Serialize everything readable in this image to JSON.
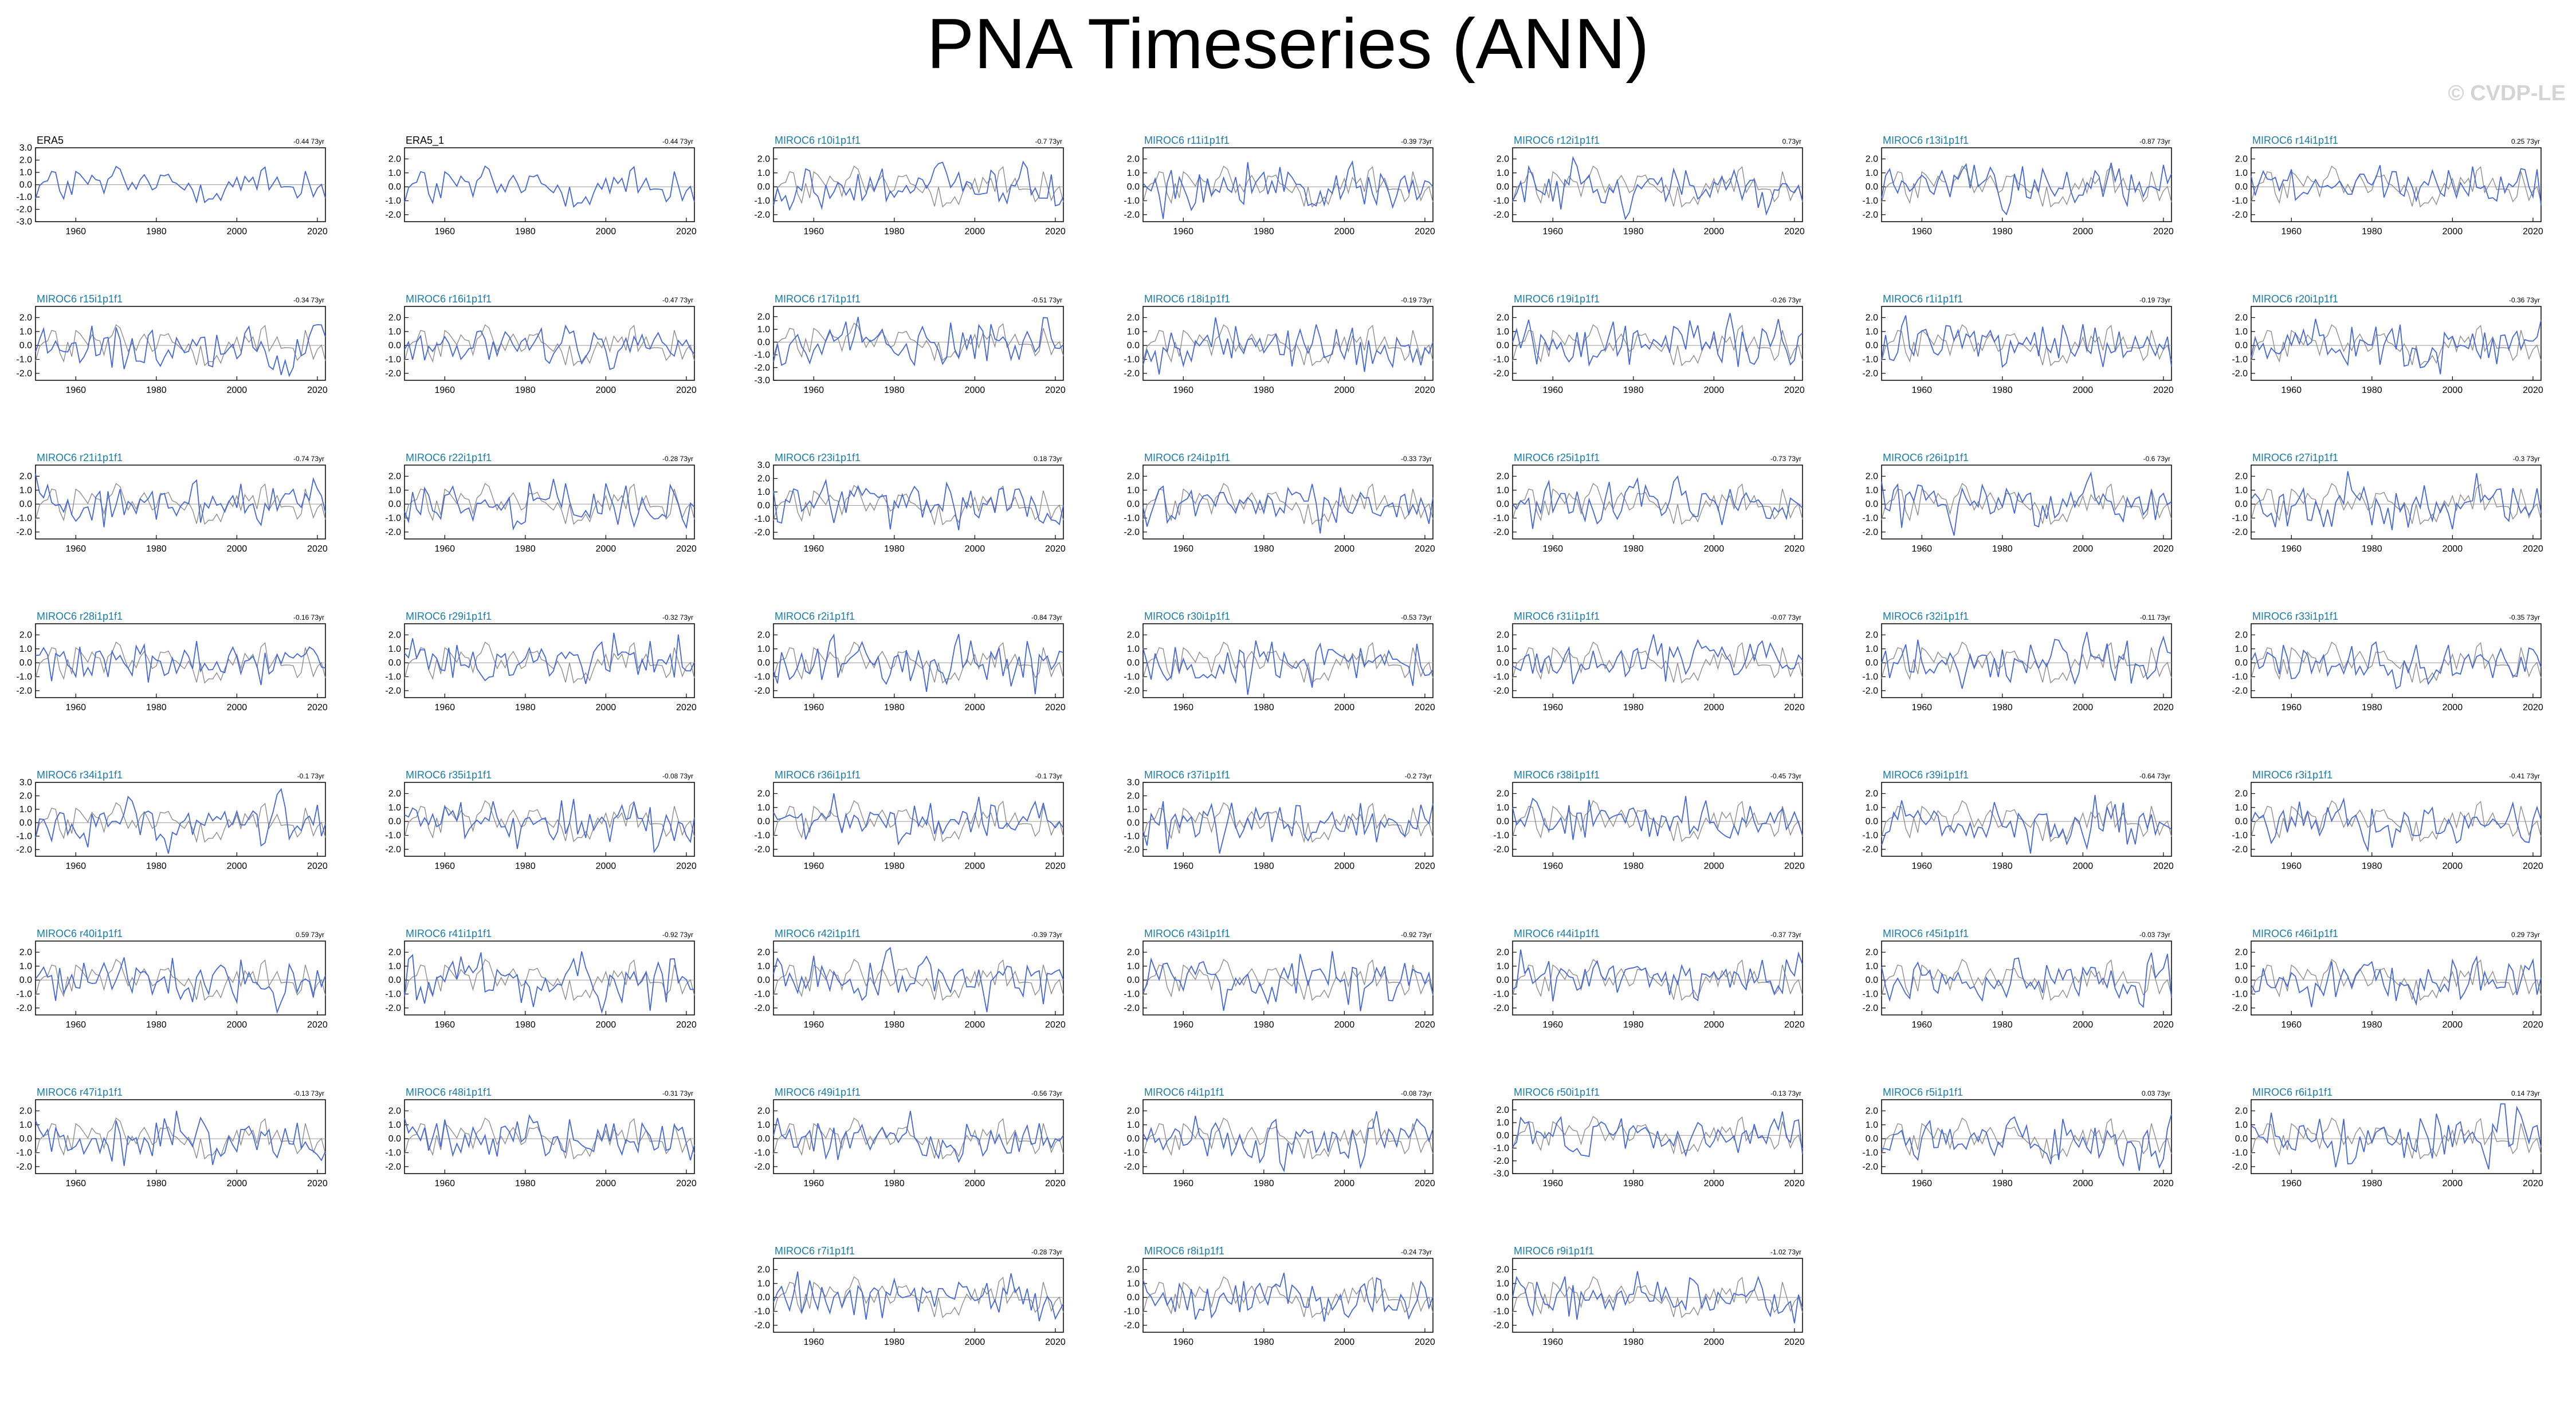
{
  "title": "PNA Timeseries (ANN)",
  "watermark": "© CVDP-LE",
  "colors": {
    "observed": "#2b2b2b",
    "model": "#4466d6",
    "reference": "#8c8c8c",
    "label_obs": "#000000",
    "label_model": "#1a7aa8"
  },
  "chart_data": {
    "type": "line",
    "x_range": [
      1950,
      2022
    ],
    "x_ticks": [
      1960,
      1980,
      2000,
      2020
    ],
    "panels": [
      {
        "label": "ERA5",
        "trend": "-0.44 73yr",
        "y_ticks": [
          "3.0",
          "2.0",
          "1.0",
          "0.0",
          "-1.0",
          "-2.0",
          "-3.0"
        ],
        "ylim": [
          -3,
          3
        ]
      },
      {
        "label": "ERA5_1",
        "trend": "-0.44 73yr",
        "y_ticks": [
          "2.0",
          "1.0",
          "0.0",
          "-1.0",
          "-2.0"
        ],
        "ylim": [
          -2.5,
          2.8
        ]
      },
      {
        "label": "MIROC6 r10i1p1f1",
        "trend": "-0.7 73yr",
        "y_ticks": [
          "2.0",
          "1.0",
          "0.0",
          "-1.0",
          "-2.0"
        ],
        "ylim": [
          -2.5,
          2.8
        ]
      },
      {
        "label": "MIROC6 r11i1p1f1",
        "trend": "-0.39 73yr",
        "y_ticks": [
          "2.0",
          "1.0",
          "0.0",
          "-1.0",
          "-2.0"
        ],
        "ylim": [
          -2.5,
          2.8
        ]
      },
      {
        "label": "MIROC6 r12i1p1f1",
        "trend": "0.73yr",
        "y_ticks": [
          "2.0",
          "1.0",
          "0.0",
          "-1.0",
          "-2.0"
        ],
        "ylim": [
          -2.5,
          2.8
        ]
      },
      {
        "label": "MIROC6 r13i1p1f1",
        "trend": "-0.87 73yr",
        "y_ticks": [
          "2.0",
          "1.0",
          "0.0",
          "-1.0",
          "-2.0"
        ],
        "ylim": [
          -2.5,
          2.8
        ]
      },
      {
        "label": "MIROC6 r14i1p1f1",
        "trend": "0.25 73yr",
        "y_ticks": [
          "2.0",
          "1.0",
          "0.0",
          "-1.0",
          "-2.0"
        ],
        "ylim": [
          -2.5,
          2.8
        ]
      },
      {
        "label": "MIROC6 r15i1p1f1",
        "trend": "-0.34 73yr",
        "y_ticks": [
          "2.0",
          "1.0",
          "0.0",
          "-1.0",
          "-2.0"
        ],
        "ylim": [
          -2.5,
          2.8
        ]
      },
      {
        "label": "MIROC6 r16i1p1f1",
        "trend": "-0.47 73yr",
        "y_ticks": [
          "2.0",
          "1.0",
          "0.0",
          "-1.0",
          "-2.0"
        ],
        "ylim": [
          -2.5,
          2.8
        ]
      },
      {
        "label": "MIROC6 r17i1p1f1",
        "trend": "-0.51 73yr",
        "y_ticks": [
          "2.0",
          "1.0",
          "0.0",
          "-1.0",
          "-2.0",
          "-3.0"
        ],
        "ylim": [
          -3,
          2.8
        ]
      },
      {
        "label": "MIROC6 r18i1p1f1",
        "trend": "-0.19 73yr",
        "y_ticks": [
          "2.0",
          "1.0",
          "0.0",
          "-1.0",
          "-2.0"
        ],
        "ylim": [
          -2.5,
          2.8
        ]
      },
      {
        "label": "MIROC6 r19i1p1f1",
        "trend": "-0.26 73yr",
        "y_ticks": [
          "2.0",
          "1.0",
          "0.0",
          "-1.0",
          "-2.0"
        ],
        "ylim": [
          -2.5,
          2.8
        ]
      },
      {
        "label": "MIROC6 r1i1p1f1",
        "trend": "-0.19 73yr",
        "y_ticks": [
          "2.0",
          "1.0",
          "0.0",
          "-1.0",
          "-2.0"
        ],
        "ylim": [
          -2.5,
          2.8
        ]
      },
      {
        "label": "MIROC6 r20i1p1f1",
        "trend": "-0.36 73yr",
        "y_ticks": [
          "2.0",
          "1.0",
          "0.0",
          "-1.0",
          "-2.0"
        ],
        "ylim": [
          -2.5,
          2.8
        ]
      },
      {
        "label": "MIROC6 r21i1p1f1",
        "trend": "-0.74 73yr",
        "y_ticks": [
          "2.0",
          "1.0",
          "0.0",
          "-1.0",
          "-2.0"
        ],
        "ylim": [
          -2.5,
          2.8
        ]
      },
      {
        "label": "MIROC6 r22i1p1f1",
        "trend": "-0.28 73yr",
        "y_ticks": [
          "2.0",
          "1.0",
          "0.0",
          "-1.0",
          "-2.0"
        ],
        "ylim": [
          -2.5,
          2.8
        ]
      },
      {
        "label": "MIROC6 r23i1p1f1",
        "trend": "0.18 73yr",
        "y_ticks": [
          "3.0",
          "2.0",
          "1.0",
          "0.0",
          "-1.0",
          "-2.0"
        ],
        "ylim": [
          -2.5,
          3
        ]
      },
      {
        "label": "MIROC6 r24i1p1f1",
        "trend": "-0.33 73yr",
        "y_ticks": [
          "2.0",
          "1.0",
          "0.0",
          "-1.0",
          "-2.0"
        ],
        "ylim": [
          -2.5,
          2.8
        ]
      },
      {
        "label": "MIROC6 r25i1p1f1",
        "trend": "-0.73 73yr",
        "y_ticks": [
          "2.0",
          "1.0",
          "0.0",
          "-1.0",
          "-2.0"
        ],
        "ylim": [
          -2.5,
          2.8
        ]
      },
      {
        "label": "MIROC6 r26i1p1f1",
        "trend": "-0.6 73yr",
        "y_ticks": [
          "2.0",
          "1.0",
          "0.0",
          "-1.0",
          "-2.0"
        ],
        "ylim": [
          -2.5,
          2.8
        ]
      },
      {
        "label": "MIROC6 r27i1p1f1",
        "trend": "-0.3 73yr",
        "y_ticks": [
          "2.0",
          "1.0",
          "0.0",
          "-1.0",
          "-2.0"
        ],
        "ylim": [
          -2.5,
          2.8
        ]
      },
      {
        "label": "MIROC6 r28i1p1f1",
        "trend": "-0.16 73yr",
        "y_ticks": [
          "2.0",
          "1.0",
          "0.0",
          "-1.0",
          "-2.0"
        ],
        "ylim": [
          -2.5,
          2.8
        ]
      },
      {
        "label": "MIROC6 r29i1p1f1",
        "trend": "-0.32 73yr",
        "y_ticks": [
          "2.0",
          "1.0",
          "0.0",
          "-1.0",
          "-2.0"
        ],
        "ylim": [
          -2.5,
          2.8
        ]
      },
      {
        "label": "MIROC6 r2i1p1f1",
        "trend": "-0.84 73yr",
        "y_ticks": [
          "2.0",
          "1.0",
          "0.0",
          "-1.0",
          "-2.0"
        ],
        "ylim": [
          -2.5,
          2.8
        ]
      },
      {
        "label": "MIROC6 r30i1p1f1",
        "trend": "-0.53 73yr",
        "y_ticks": [
          "2.0",
          "1.0",
          "0.0",
          "-1.0",
          "-2.0"
        ],
        "ylim": [
          -2.5,
          2.8
        ]
      },
      {
        "label": "MIROC6 r31i1p1f1",
        "trend": "-0.07 73yr",
        "y_ticks": [
          "2.0",
          "1.0",
          "0.0",
          "-1.0",
          "-2.0"
        ],
        "ylim": [
          -2.5,
          2.8
        ]
      },
      {
        "label": "MIROC6 r32i1p1f1",
        "trend": "-0.11 73yr",
        "y_ticks": [
          "2.0",
          "1.0",
          "0.0",
          "-1.0",
          "-2.0"
        ],
        "ylim": [
          -2.5,
          2.8
        ]
      },
      {
        "label": "MIROC6 r33i1p1f1",
        "trend": "-0.35 73yr",
        "y_ticks": [
          "2.0",
          "1.0",
          "0.0",
          "-1.0",
          "-2.0"
        ],
        "ylim": [
          -2.5,
          2.8
        ]
      },
      {
        "label": "MIROC6 r34i1p1f1",
        "trend": "-0.1 73yr",
        "y_ticks": [
          "3.0",
          "2.0",
          "1.0",
          "0.0",
          "-1.0",
          "-2.0"
        ],
        "ylim": [
          -2.5,
          3
        ]
      },
      {
        "label": "MIROC6 r35i1p1f1",
        "trend": "-0.08 73yr",
        "y_ticks": [
          "2.0",
          "1.0",
          "0.0",
          "-1.0",
          "-2.0"
        ],
        "ylim": [
          -2.5,
          2.8
        ]
      },
      {
        "label": "MIROC6 r36i1p1f1",
        "trend": "-0.1 73yr",
        "y_ticks": [
          "2.0",
          "1.0",
          "0.0",
          "-1.0",
          "-2.0"
        ],
        "ylim": [
          -2.5,
          2.8
        ]
      },
      {
        "label": "MIROC6 r37i1p1f1",
        "trend": "-0.2 73yr",
        "y_ticks": [
          "3.0",
          "2.0",
          "1.0",
          "0.0",
          "-1.0",
          "-2.0"
        ],
        "ylim": [
          -2.5,
          3
        ]
      },
      {
        "label": "MIROC6 r38i1p1f1",
        "trend": "-0.45 73yr",
        "y_ticks": [
          "2.0",
          "1.0",
          "0.0",
          "-1.0",
          "-2.0"
        ],
        "ylim": [
          -2.5,
          2.8
        ]
      },
      {
        "label": "MIROC6 r39i1p1f1",
        "trend": "-0.64 73yr",
        "y_ticks": [
          "2.0",
          "1.0",
          "0.0",
          "-1.0",
          "-2.0"
        ],
        "ylim": [
          -2.5,
          2.8
        ]
      },
      {
        "label": "MIROC6 r3i1p1f1",
        "trend": "-0.41 73yr",
        "y_ticks": [
          "2.0",
          "1.0",
          "0.0",
          "-1.0",
          "-2.0"
        ],
        "ylim": [
          -2.5,
          2.8
        ]
      },
      {
        "label": "MIROC6 r40i1p1f1",
        "trend": "0.59 73yr",
        "y_ticks": [
          "2.0",
          "1.0",
          "0.0",
          "-1.0",
          "-2.0"
        ],
        "ylim": [
          -2.5,
          2.8
        ]
      },
      {
        "label": "MIROC6 r41i1p1f1",
        "trend": "-0.92 73yr",
        "y_ticks": [
          "2.0",
          "1.0",
          "0.0",
          "-1.0",
          "-2.0"
        ],
        "ylim": [
          -2.5,
          2.8
        ]
      },
      {
        "label": "MIROC6 r42i1p1f1",
        "trend": "-0.39 73yr",
        "y_ticks": [
          "2.0",
          "1.0",
          "0.0",
          "-1.0",
          "-2.0"
        ],
        "ylim": [
          -2.5,
          2.8
        ]
      },
      {
        "label": "MIROC6 r43i1p1f1",
        "trend": "-0.92 73yr",
        "y_ticks": [
          "2.0",
          "1.0",
          "0.0",
          "-1.0",
          "-2.0"
        ],
        "ylim": [
          -2.5,
          2.8
        ]
      },
      {
        "label": "MIROC6 r44i1p1f1",
        "trend": "-0.37 73yr",
        "y_ticks": [
          "2.0",
          "1.0",
          "0.0",
          "-1.0",
          "-2.0"
        ],
        "ylim": [
          -2.5,
          2.8
        ]
      },
      {
        "label": "MIROC6 r45i1p1f1",
        "trend": "-0.03 73yr",
        "y_ticks": [
          "2.0",
          "1.0",
          "0.0",
          "-1.0",
          "-2.0"
        ],
        "ylim": [
          -2.5,
          2.8
        ]
      },
      {
        "label": "MIROC6 r46i1p1f1",
        "trend": "0.29 73yr",
        "y_ticks": [
          "2.0",
          "1.0",
          "0.0",
          "-1.0",
          "-2.0"
        ],
        "ylim": [
          -2.5,
          2.8
        ]
      },
      {
        "label": "MIROC6 r47i1p1f1",
        "trend": "-0.13 73yr",
        "y_ticks": [
          "2.0",
          "1.0",
          "0.0",
          "-1.0",
          "-2.0"
        ],
        "ylim": [
          -2.5,
          2.8
        ]
      },
      {
        "label": "MIROC6 r48i1p1f1",
        "trend": "-0.31 73yr",
        "y_ticks": [
          "2.0",
          "1.0",
          "0.0",
          "-1.0",
          "-2.0"
        ],
        "ylim": [
          -2.5,
          2.8
        ]
      },
      {
        "label": "MIROC6 r49i1p1f1",
        "trend": "-0.56 73yr",
        "y_ticks": [
          "2.0",
          "1.0",
          "0.0",
          "-1.0",
          "-2.0"
        ],
        "ylim": [
          -2.5,
          2.8
        ]
      },
      {
        "label": "MIROC6 r4i1p1f1",
        "trend": "-0.08 73yr",
        "y_ticks": [
          "2.0",
          "1.0",
          "0.0",
          "-1.0",
          "-2.0"
        ],
        "ylim": [
          -2.5,
          2.8
        ]
      },
      {
        "label": "MIROC6 r50i1p1f1",
        "trend": "-0.13 73yr",
        "y_ticks": [
          "2.0",
          "1.0",
          "0.0",
          "-1.0",
          "-2.0",
          "-3.0"
        ],
        "ylim": [
          -3,
          2.8
        ]
      },
      {
        "label": "MIROC6 r5i1p1f1",
        "trend": "0.03 73yr",
        "y_ticks": [
          "2.0",
          "1.0",
          "0.0",
          "-1.0",
          "-2.0"
        ],
        "ylim": [
          -2.5,
          2.8
        ]
      },
      {
        "label": "MIROC6 r6i1p1f1",
        "trend": "0.14 73yr",
        "y_ticks": [
          "2.0",
          "1.0",
          "0.0",
          "-1.0",
          "-2.0"
        ],
        "ylim": [
          -2.5,
          2.8
        ]
      },
      {
        "label": "MIROC6 r7i1p1f1",
        "trend": "-0.28 73yr",
        "y_ticks": [
          "2.0",
          "1.0",
          "0.0",
          "-1.0",
          "-2.0"
        ],
        "ylim": [
          -2.5,
          2.8
        ]
      },
      {
        "label": "MIROC6 r8i1p1f1",
        "trend": "-0.24 73yr",
        "y_ticks": [
          "2.0",
          "1.0",
          "0.0",
          "-1.0",
          "-2.0"
        ],
        "ylim": [
          -2.5,
          2.8
        ]
      },
      {
        "label": "MIROC6 r9i1p1f1",
        "trend": "-1.02 73yr",
        "y_ticks": [
          "2.0",
          "1.0",
          "0.0",
          "-1.0",
          "-2.0"
        ],
        "ylim": [
          -2.5,
          2.8
        ]
      }
    ]
  }
}
